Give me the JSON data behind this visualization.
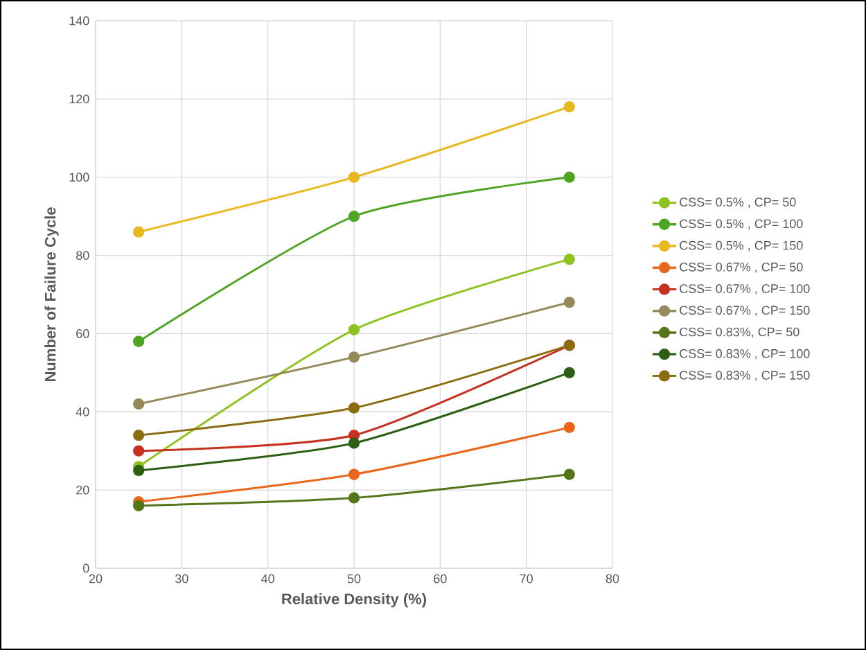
{
  "chart_data": {
    "type": "line",
    "xlabel": "Relative Density (%)",
    "ylabel": "Number of Failure Cycle",
    "x": [
      25,
      50,
      75
    ],
    "xlim": [
      20,
      80
    ],
    "xticks": [
      20,
      30,
      40,
      50,
      60,
      70,
      80
    ],
    "ylim": [
      0,
      140
    ],
    "yticks": [
      0,
      20,
      40,
      60,
      80,
      100,
      120,
      140
    ],
    "grid": true,
    "legend": "right",
    "marker": "circle",
    "line_style": "solid",
    "series": [
      {
        "name": "CSS= 0.5% , CP= 50",
        "color": "#8dc21f",
        "values": [
          26,
          61,
          79
        ]
      },
      {
        "name": "CSS= 0.5% , CP= 100",
        "color": "#4ea423",
        "values": [
          58,
          90,
          100
        ]
      },
      {
        "name": "CSS= 0.5% , CP= 150",
        "color": "#e9b820",
        "values": [
          86,
          100,
          118
        ]
      },
      {
        "name": "CSS= 0.67% , CP= 50",
        "color": "#e9661a",
        "values": [
          17,
          24,
          36
        ]
      },
      {
        "name": "CSS= 0.67% , CP= 100",
        "color": "#c5301f",
        "values": [
          30,
          34,
          57
        ]
      },
      {
        "name": "CSS= 0.67% , CP= 150",
        "color": "#968a5c",
        "values": [
          42,
          54,
          68
        ]
      },
      {
        "name": "CSS= 0.83%, CP= 50",
        "color": "#557519",
        "values": [
          16,
          18,
          24
        ]
      },
      {
        "name": "CSS= 0.83% , CP= 100",
        "color": "#2c5e14",
        "values": [
          25,
          32,
          50
        ]
      },
      {
        "name": "CSS= 0.83% , CP= 150",
        "color": "#8c6c10",
        "values": [
          34,
          41,
          57
        ]
      }
    ]
  }
}
